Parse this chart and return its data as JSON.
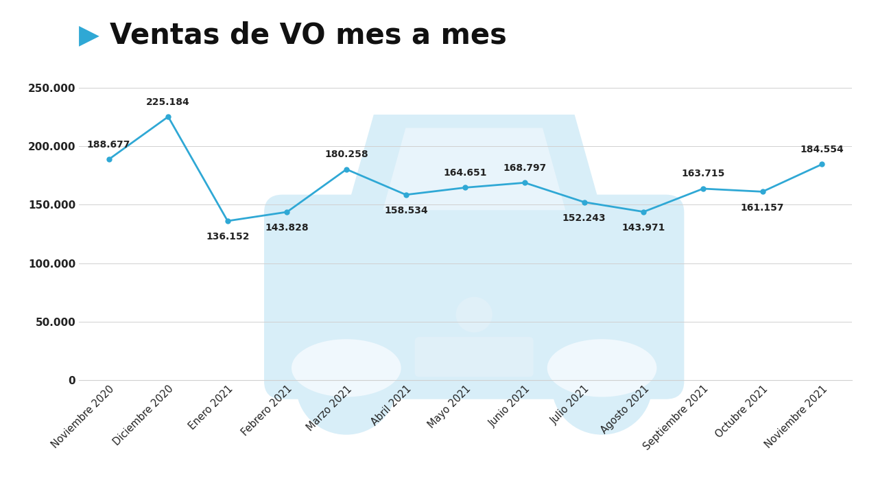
{
  "title": "Ventas de VO mes a mes",
  "categories": [
    "Noviembre 2020",
    "Diciembre 2020",
    "Enero 2021",
    "Febrero 2021",
    "Marzo 2021",
    "Abril 2021",
    "Mayo 2021",
    "Junio 2021",
    "Julio 2021",
    "Agosto 2021",
    "Septiembre 2021",
    "Octubre 2021",
    "Noviembre 2021"
  ],
  "values": [
    188677,
    225184,
    136152,
    143828,
    180258,
    158534,
    164651,
    168797,
    152243,
    143971,
    163715,
    161157,
    184554
  ],
  "line_color": "#2fa8d5",
  "marker_color": "#2fa8d5",
  "bg_color": "#ffffff",
  "grid_color": "#d0d0d0",
  "label_color": "#222222",
  "ytick_labels": [
    "0",
    "50.000",
    "100.000",
    "150.000",
    "200.000",
    "250.000"
  ],
  "ytick_values": [
    0,
    50000,
    100000,
    150000,
    200000,
    250000
  ],
  "ylim": [
    0,
    270000
  ],
  "title_color": "#111111",
  "arrow_color": "#2fa8d5",
  "title_fontsize": 30,
  "label_fontsize": 10.5,
  "annotation_fontsize": 10,
  "tick_fontsize": 11,
  "car_color": "#d8eef8"
}
